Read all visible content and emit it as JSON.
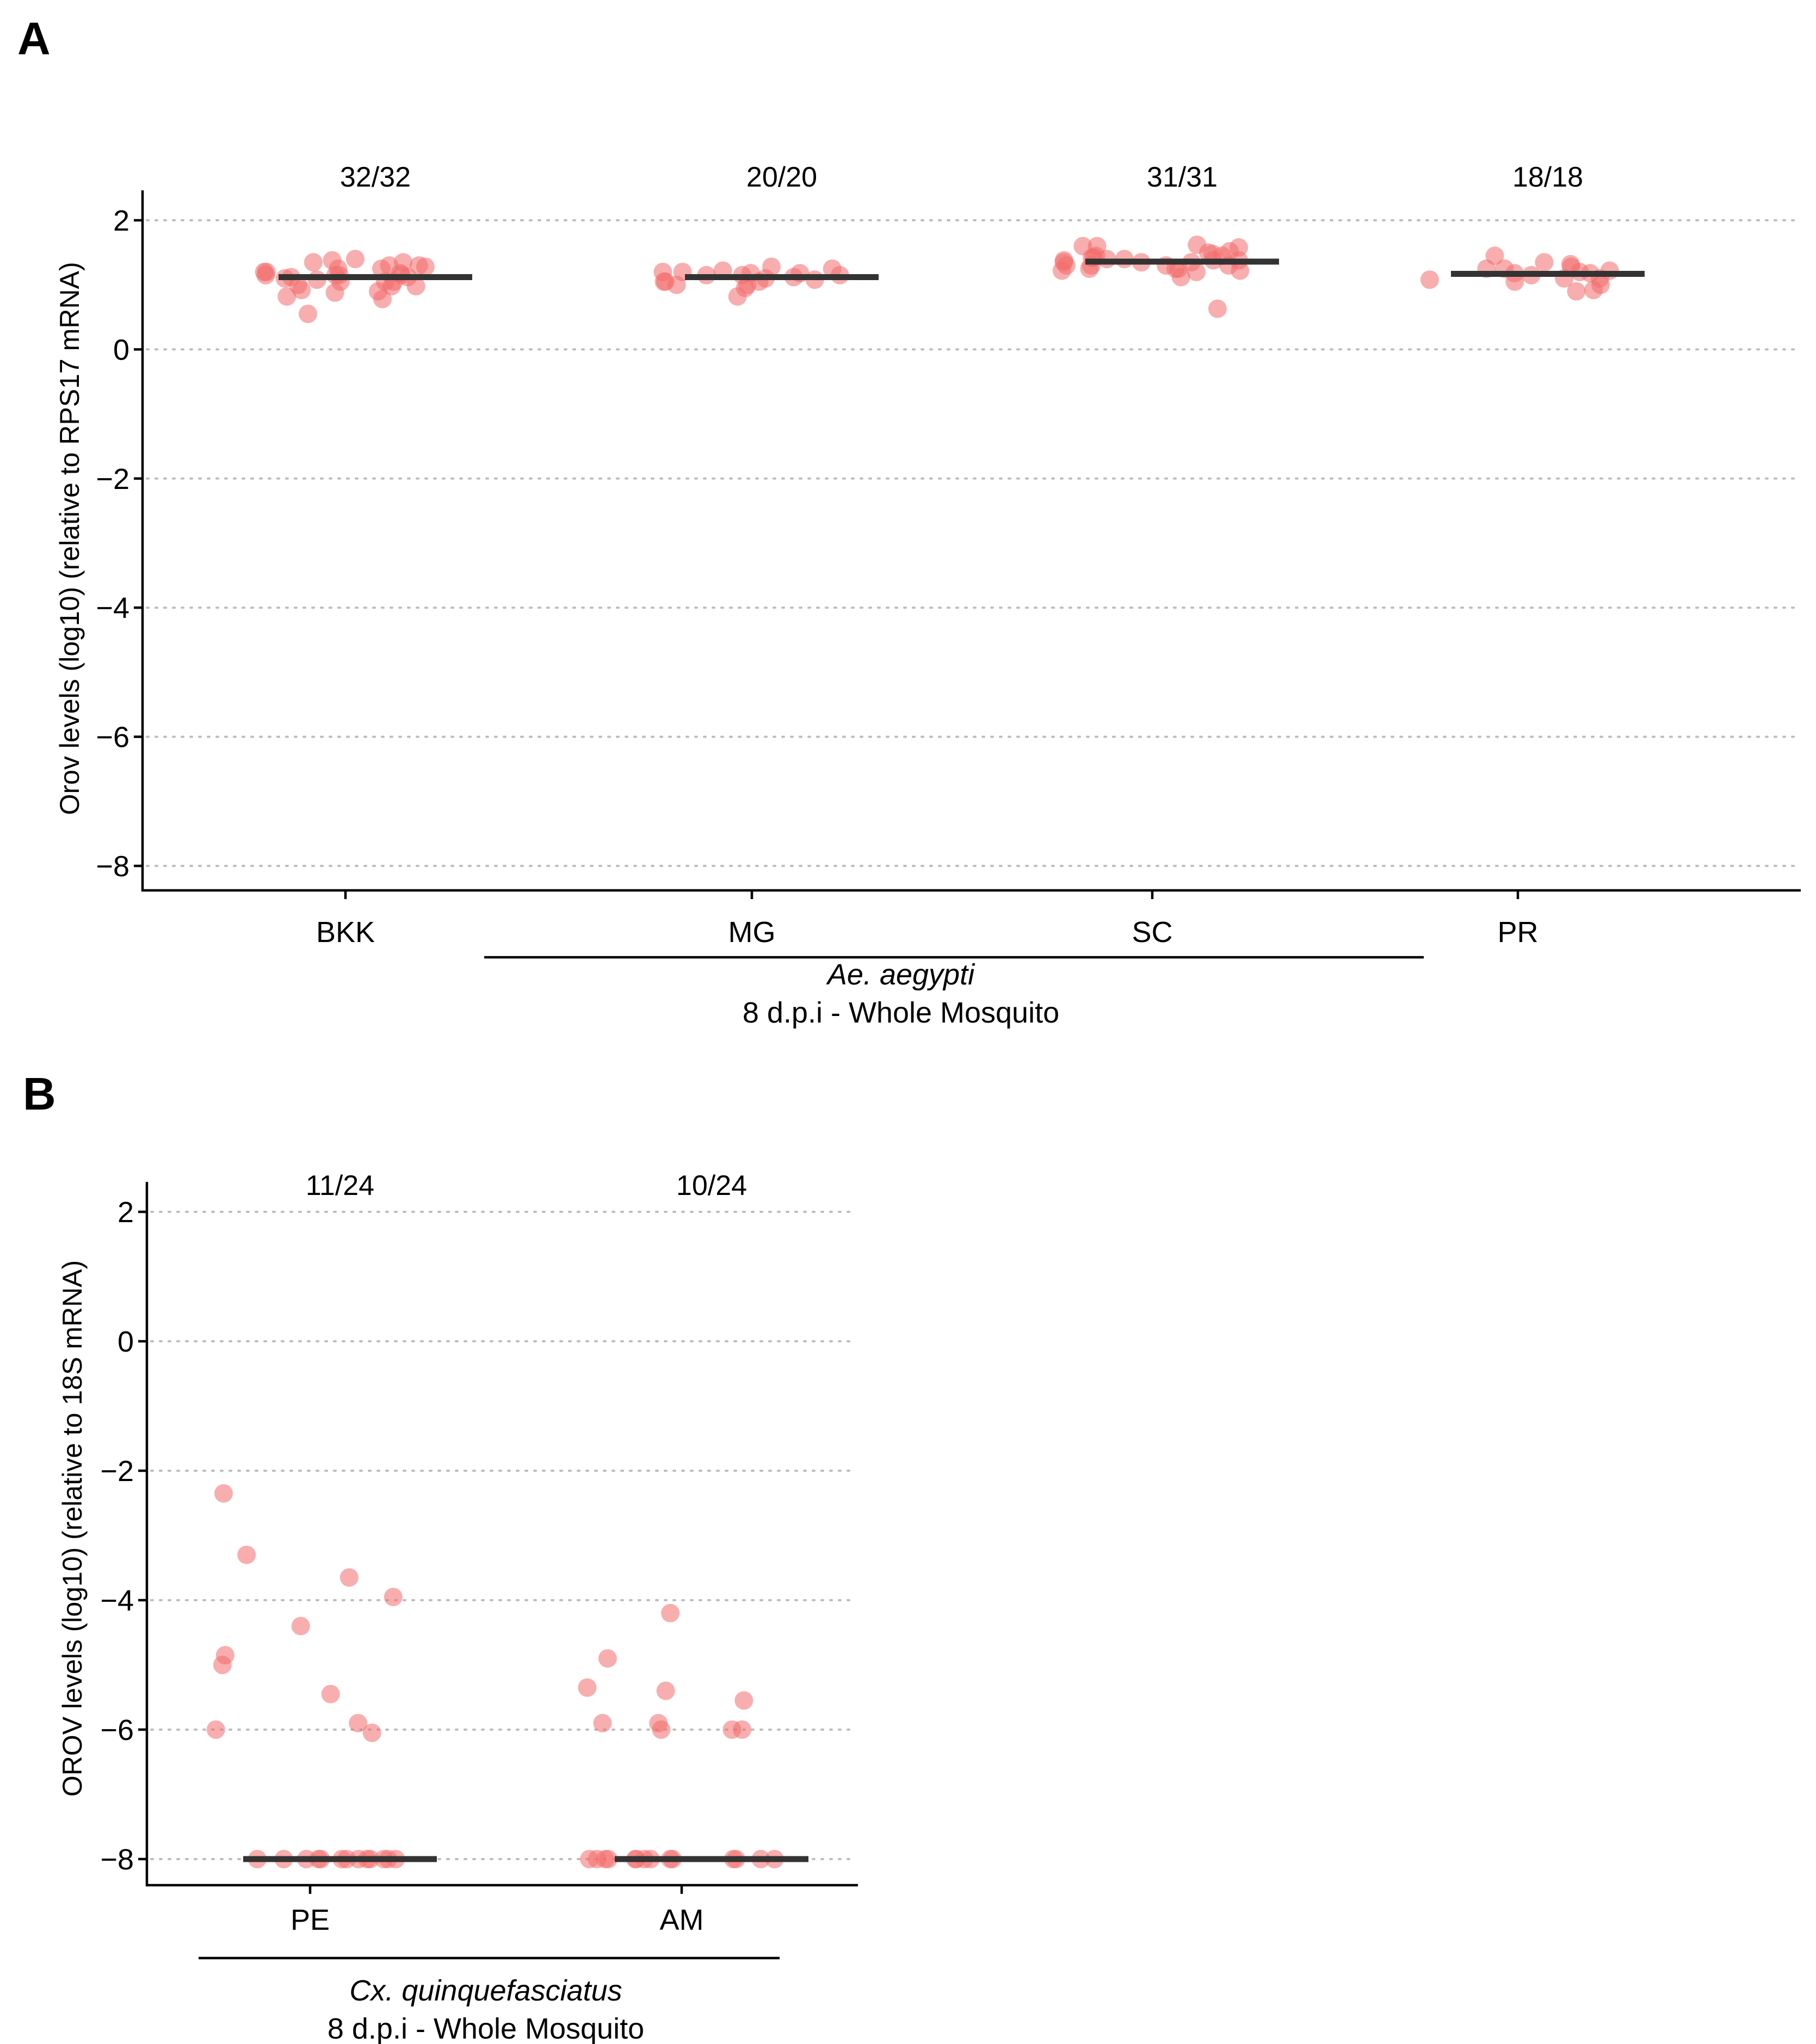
{
  "colors": {
    "point": "#f26b6b",
    "median": "#333333",
    "grid": "#bdbdbd",
    "axis": "#000000"
  },
  "chart_data": [
    {
      "panel": "A",
      "type": "scatter",
      "ylabel": "Orov levels (log10) (relative to RPS17 mRNA)",
      "ylim": [
        -8.4,
        2.5
      ],
      "yticks": [
        2,
        0,
        -2,
        -4,
        -6,
        -8
      ],
      "ytick_labels": [
        "2",
        "0",
        "−2",
        "−4",
        "−6",
        "−8"
      ],
      "grid": "horizontal dotted",
      "categories": [
        "BKK",
        "MG",
        "SC",
        "PR"
      ],
      "ratios": [
        "32/32",
        "20/20",
        "31/31",
        "18/18"
      ],
      "bracket": {
        "species": "Ae. aegypti",
        "subtitle": "8 d.p.i - Whole Mosquito",
        "spans": [
          "MG",
          "SC"
        ]
      },
      "series": [
        {
          "name": "BKK",
          "median": 1.12,
          "values": [
            1.05,
            1.12,
            0.98,
            1.08,
            1.15,
            0.55,
            1.0,
            1.1,
            0.92,
            1.05,
            1.25,
            1.18,
            1.2,
            1.38,
            1.05,
            0.9,
            0.78,
            1.15,
            1.12,
            1.28,
            1.35,
            1.2,
            1.15,
            1.3,
            0.98,
            1.25,
            1.4,
            0.82,
            1.35,
            1.3,
            1.15,
            0.88
          ]
        },
        {
          "name": "MG",
          "median": 1.12,
          "values": [
            1.12,
            1.2,
            1.15,
            1.18,
            0.95,
            1.0,
            1.28,
            1.1,
            1.05,
            1.15,
            1.18,
            1.05,
            1.22,
            1.25,
            1.08,
            1.2,
            1.15,
            1.05,
            1.0,
            0.82
          ]
        },
        {
          "name": "SC",
          "median": 1.36,
          "values": [
            1.2,
            1.38,
            1.6,
            1.25,
            1.6,
            1.12,
            1.58,
            1.22,
            1.5,
            1.3,
            1.48,
            1.4,
            1.25,
            1.35,
            1.52,
            1.3,
            1.45,
            1.22,
            1.4,
            1.3,
            1.42,
            1.38,
            1.35,
            1.42,
            1.25,
            0.63,
            1.35,
            1.62,
            1.38,
            1.3,
            1.45
          ]
        },
        {
          "name": "PR",
          "median": 1.17,
          "values": [
            1.1,
            1.35,
            1.25,
            1.28,
            1.32,
            1.2,
            1.25,
            1.45,
            1.15,
            0.9,
            1.18,
            1.05,
            0.92,
            1.0,
            1.22,
            1.08,
            1.1,
            1.18
          ]
        }
      ]
    },
    {
      "panel": "B",
      "type": "scatter",
      "ylabel": "OROV levels (log10) (relative to 18S mRNA)",
      "ylim": [
        -8.4,
        2.5
      ],
      "yticks": [
        2,
        0,
        -2,
        -4,
        -6,
        -8
      ],
      "ytick_labels": [
        "2",
        "0",
        "−2",
        "−4",
        "−6",
        "−8"
      ],
      "grid": "horizontal dotted",
      "categories": [
        "PE",
        "AM"
      ],
      "ratios": [
        "11/24",
        "10/24"
      ],
      "bracket": {
        "species": "Cx. quinquefasciatus",
        "subtitle": "8 d.p.i - Whole Mosquito",
        "spans": [
          "PE",
          "AM"
        ]
      },
      "series": [
        {
          "name": "PE",
          "median": -8.0,
          "values": [
            -5.9,
            -6.0,
            -3.3,
            -3.95,
            -4.4,
            -6.05,
            -4.85,
            -5.0,
            -5.45,
            -2.35,
            -3.65,
            -8,
            -8,
            -8,
            -8,
            -8,
            -8,
            -8,
            -8,
            -8,
            -8,
            -8,
            -8,
            -8
          ]
        },
        {
          "name": "AM",
          "median": -8.0,
          "values": [
            -6.0,
            -6.0,
            -6.0,
            -5.9,
            -4.9,
            -5.35,
            -5.4,
            -4.2,
            -5.9,
            -5.55,
            -8,
            -8,
            -8,
            -8,
            -8,
            -8,
            -8,
            -8,
            -8,
            -8,
            -8,
            -8,
            -8,
            -8
          ]
        }
      ]
    }
  ]
}
